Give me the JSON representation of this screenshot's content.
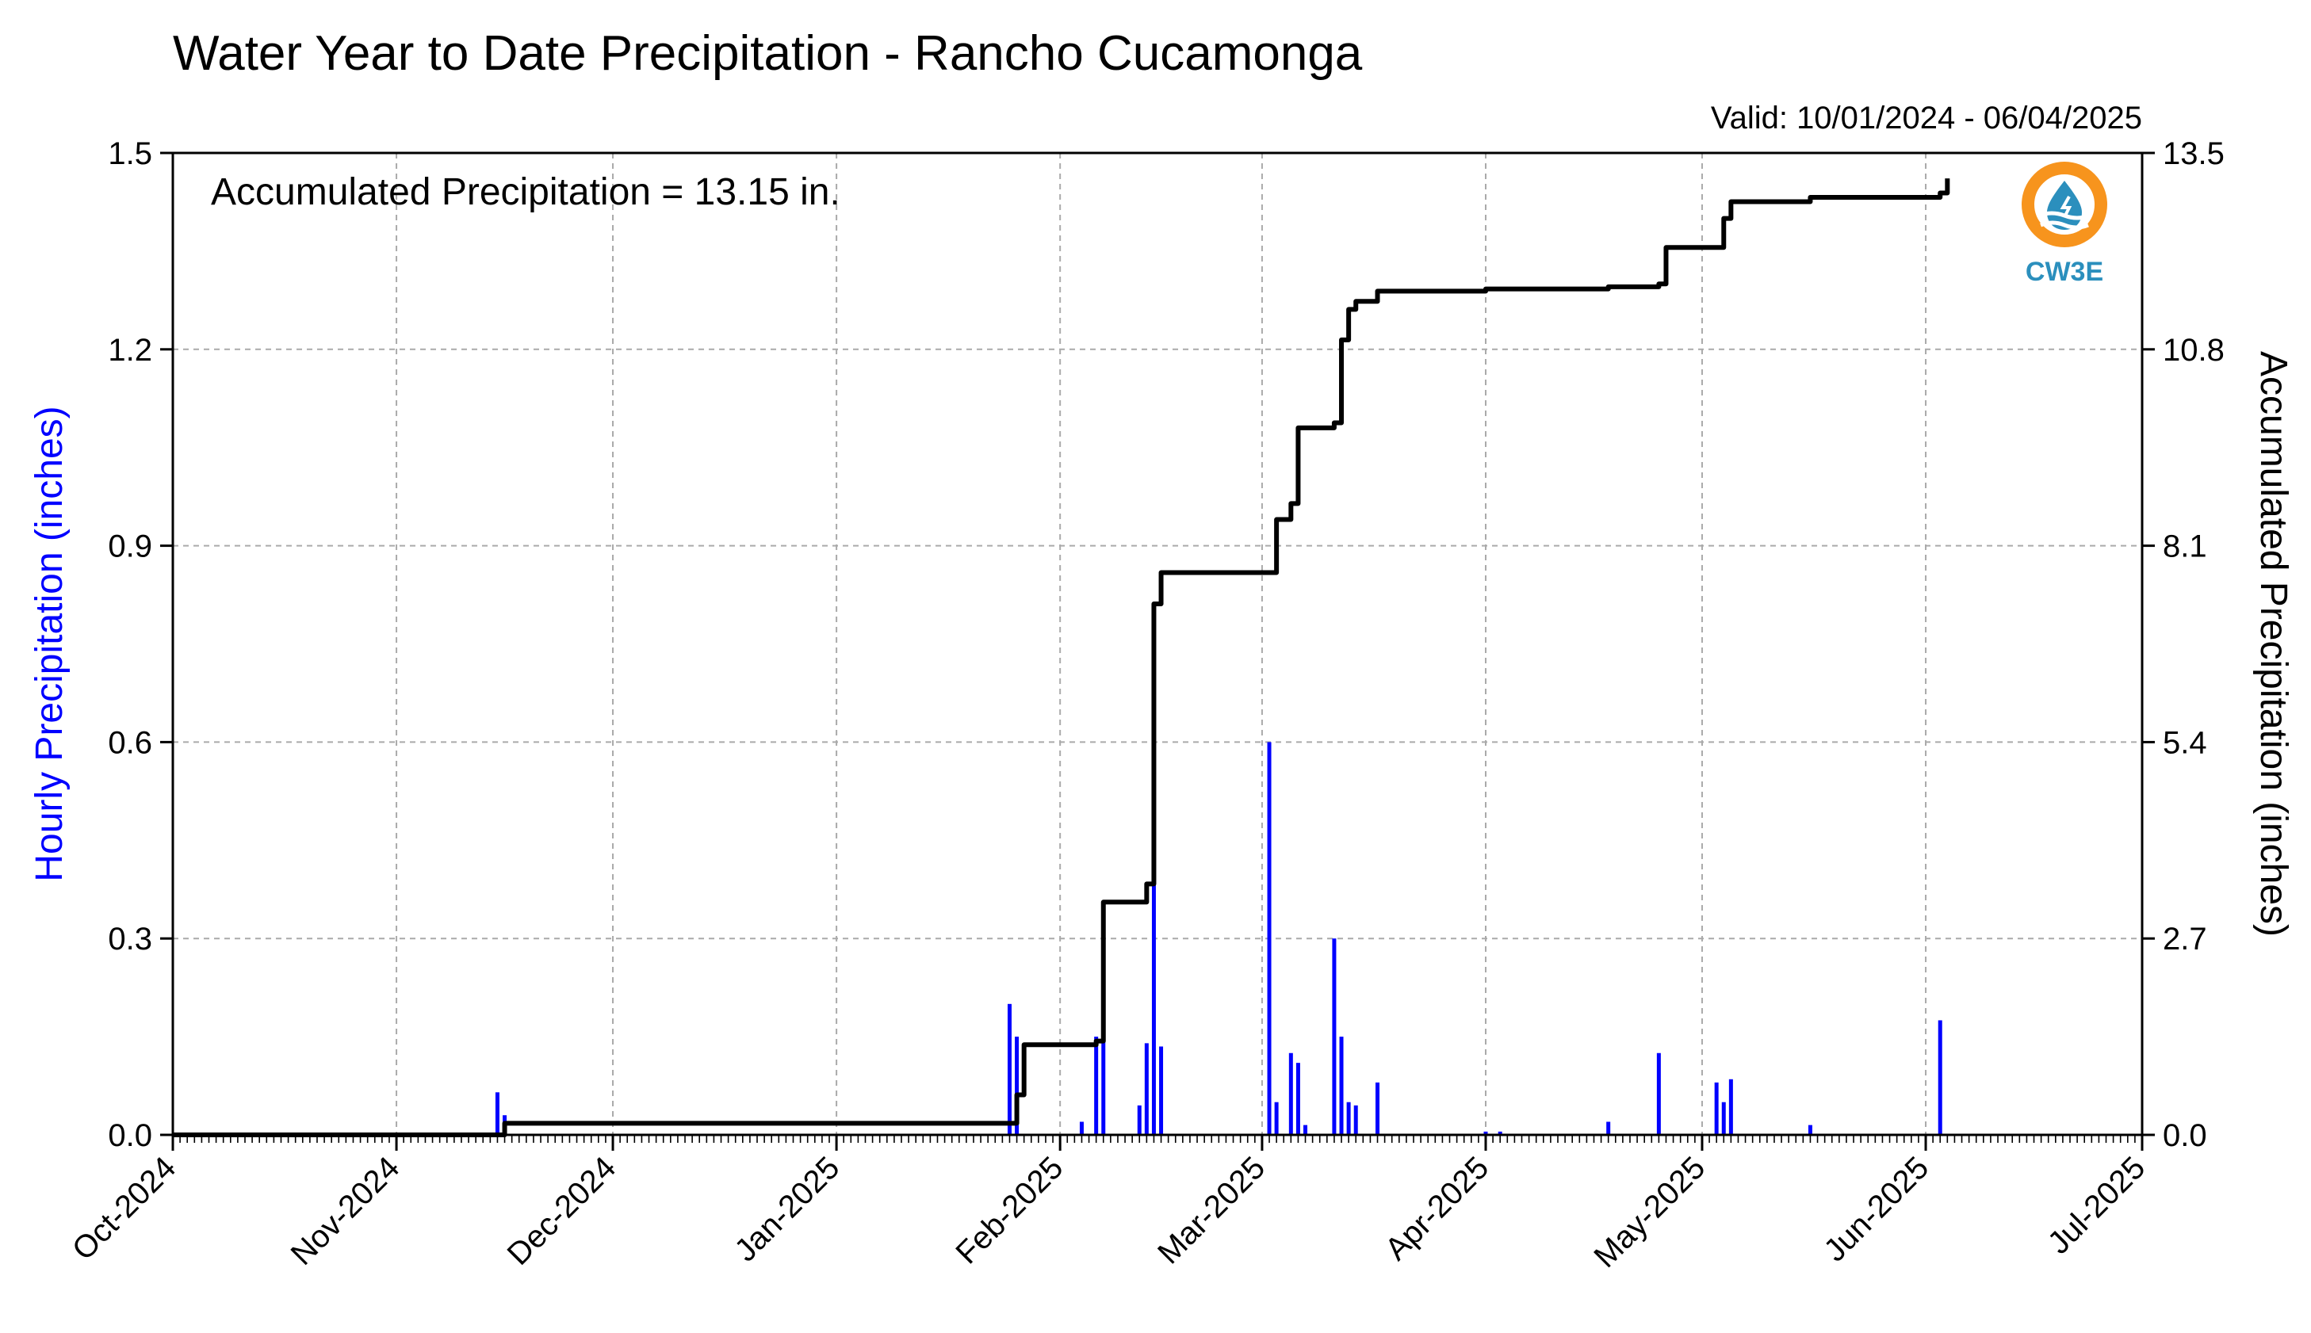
{
  "chart_data": {
    "type": "bar",
    "title": "Water Year to Date Precipitation - Rancho Cucamonga",
    "valid": "Valid: 10/01/2024 - 06/04/2025",
    "annotation": "Accumulated Precipitation = 13.15 in.",
    "ylabel": "Hourly Precipitation (inches)",
    "y2label": "Accumulated Precipitation (inches)",
    "ylim": [
      0,
      1.5
    ],
    "y2lim": [
      0,
      13.5
    ],
    "xlim": [
      "2024-10-01",
      "2025-07-01"
    ],
    "yticks": [
      0.0,
      0.3,
      0.6,
      0.9,
      1.2,
      1.5
    ],
    "yticklabels": [
      "0.0",
      "0.3",
      "0.6",
      "0.9",
      "1.2",
      "1.5"
    ],
    "y2ticks": [
      0.0,
      2.7,
      5.4,
      8.1,
      10.8,
      13.5
    ],
    "y2ticklabels": [
      "0.0",
      "2.7",
      "5.4",
      "8.1",
      "10.8",
      "13.5"
    ],
    "xticks": [
      "2024-10-01",
      "2024-11-01",
      "2024-12-01",
      "2025-01-01",
      "2025-02-01",
      "2025-03-01",
      "2025-04-01",
      "2025-05-01",
      "2025-06-01",
      "2025-07-01"
    ],
    "xticklabels": [
      "Oct-2024",
      "Nov-2024",
      "Dec-2024",
      "Jan-2025",
      "Feb-2025",
      "Mar-2025",
      "Apr-2025",
      "May-2025",
      "Jun-2025",
      "Jul-2025"
    ],
    "grid": true,
    "colors": {
      "hourly": "#0000ff",
      "accumulated": "#000000",
      "ylabel_left": "#0000ff",
      "grid": "#aaaaaa"
    },
    "series": [
      {
        "name": "Hourly Precipitation (inches)",
        "type": "bar",
        "x": [
          "2024-11-15",
          "2024-11-16",
          "2025-01-25",
          "2025-01-26",
          "2025-02-04",
          "2025-02-06",
          "2025-02-07",
          "2025-02-12",
          "2025-02-13",
          "2025-02-14",
          "2025-02-15",
          "2025-03-02",
          "2025-03-03",
          "2025-03-05",
          "2025-03-06",
          "2025-03-07",
          "2025-03-11",
          "2025-03-12",
          "2025-03-13",
          "2025-03-14",
          "2025-03-17",
          "2025-04-01",
          "2025-04-03",
          "2025-04-18",
          "2025-04-25",
          "2025-05-03",
          "2025-05-04",
          "2025-05-05",
          "2025-05-16",
          "2025-06-03"
        ],
        "y": [
          0.065,
          0.03,
          0.2,
          0.15,
          0.02,
          0.15,
          0.18,
          0.045,
          0.14,
          0.47,
          0.135,
          0.6,
          0.05,
          0.125,
          0.11,
          0.015,
          0.3,
          0.15,
          0.05,
          0.045,
          0.08,
          0.005,
          0.005,
          0.02,
          0.125,
          0.08,
          0.05,
          0.085,
          0.015,
          0.175
        ]
      },
      {
        "name": "Accumulated Precipitation (inches)",
        "type": "line",
        "axis": "right",
        "x": [
          "2024-10-01",
          "2024-11-15",
          "2024-11-16",
          "2025-01-25",
          "2025-01-26",
          "2025-01-27",
          "2025-02-04",
          "2025-02-06",
          "2025-02-07",
          "2025-02-12",
          "2025-02-13",
          "2025-02-14",
          "2025-02-15",
          "2025-03-02",
          "2025-03-03",
          "2025-03-05",
          "2025-03-06",
          "2025-03-11",
          "2025-03-12",
          "2025-03-13",
          "2025-03-14",
          "2025-03-17",
          "2025-04-01",
          "2025-04-18",
          "2025-04-25",
          "2025-04-26",
          "2025-05-03",
          "2025-05-04",
          "2025-05-05",
          "2025-05-16",
          "2025-06-03",
          "2025-06-04"
        ],
        "y": [
          0.0,
          0.0,
          0.16,
          0.16,
          0.55,
          1.24,
          1.24,
          1.29,
          3.2,
          3.2,
          3.45,
          7.3,
          7.73,
          7.73,
          8.46,
          8.68,
          9.72,
          9.79,
          10.93,
          11.35,
          11.46,
          11.6,
          11.63,
          11.66,
          11.7,
          12.2,
          12.2,
          12.6,
          12.83,
          12.89,
          12.95,
          13.15
        ]
      }
    ]
  },
  "logo": {
    "label": "CW3E",
    "colors": {
      "ring": "#f7941d",
      "drop": "#2b8fbd",
      "text": "#2b8fbd"
    }
  }
}
